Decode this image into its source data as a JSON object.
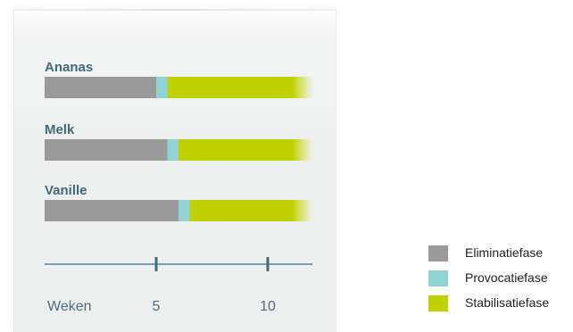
{
  "chart_data": {
    "type": "bar",
    "orientation": "horizontal",
    "stacked": true,
    "categories": [
      "Ananas",
      "Melk",
      "Vanille"
    ],
    "series": [
      {
        "name": "Eliminatiefase",
        "color": "#9a9a9a",
        "values": [
          5,
          5.5,
          6
        ]
      },
      {
        "name": "Provocatiefase",
        "color": "#8fd3d6",
        "values": [
          0.5,
          0.5,
          0.5
        ]
      },
      {
        "name": "Stabilisatiefase",
        "color": "#c0d000",
        "values": [
          6.5,
          6,
          5.5
        ]
      }
    ],
    "xlabel": "Weken",
    "xlim": [
      0,
      12
    ],
    "xticks": [
      5,
      10
    ],
    "bars_fade_right": true,
    "legend_position": "bottom-right",
    "grid": false
  }
}
